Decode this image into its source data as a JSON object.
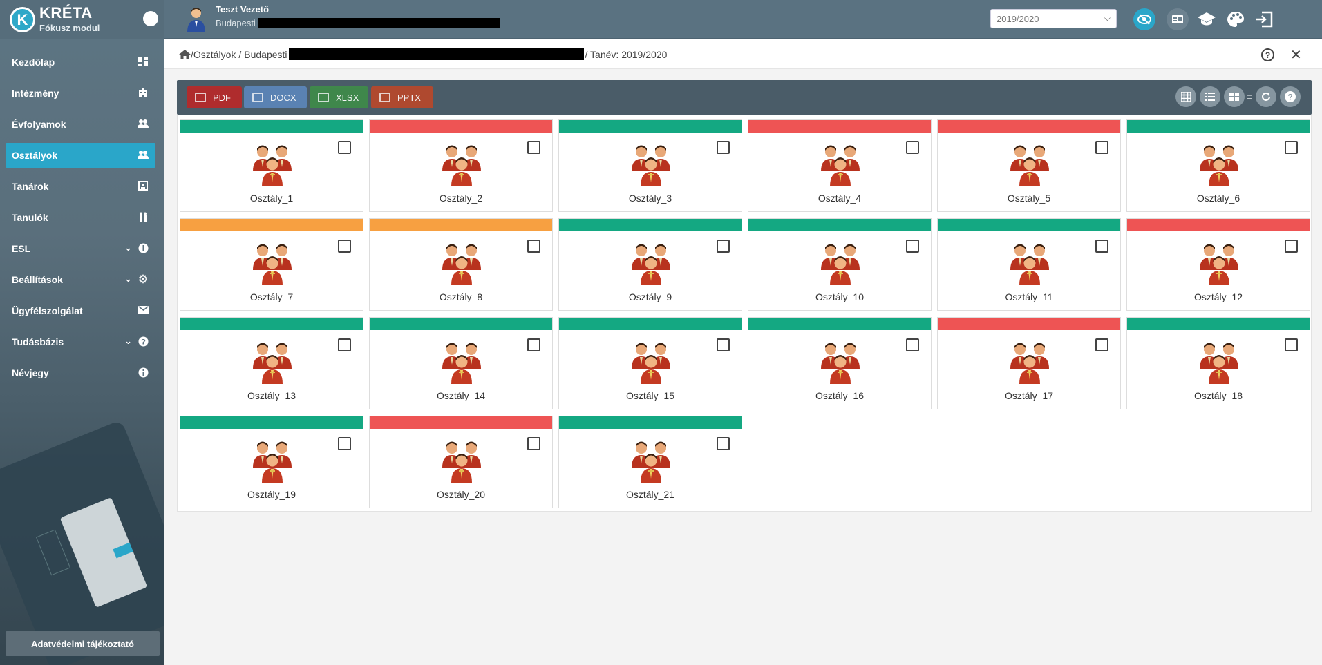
{
  "brand": {
    "logo_letter": "K",
    "title": "KRÉTA",
    "subtitle": "Fókusz modul"
  },
  "sidebar": {
    "items": [
      {
        "label": "Kezdőlap",
        "icon": "dashboard-icon",
        "active": false,
        "expandable": false
      },
      {
        "label": "Intézmény",
        "icon": "building-icon",
        "active": false,
        "expandable": false
      },
      {
        "label": "Évfolyamok",
        "icon": "people-icon",
        "active": false,
        "expandable": false
      },
      {
        "label": "Osztályok",
        "icon": "people-icon",
        "active": true,
        "expandable": false
      },
      {
        "label": "Tanárok",
        "icon": "contact-card-icon",
        "active": false,
        "expandable": false
      },
      {
        "label": "Tanulók",
        "icon": "students-icon",
        "active": false,
        "expandable": false
      },
      {
        "label": "ESL",
        "icon": "info-icon",
        "active": false,
        "expandable": true
      },
      {
        "label": "Beállítások",
        "icon": "gear-icon",
        "active": false,
        "expandable": true
      },
      {
        "label": "Ügyfélszolgálat",
        "icon": "mail-icon",
        "active": false,
        "expandable": false
      },
      {
        "label": "Tudásbázis",
        "icon": "help-icon",
        "active": false,
        "expandable": true
      },
      {
        "label": "Névjegy",
        "icon": "info-icon",
        "active": false,
        "expandable": false
      }
    ],
    "privacy_label": "Adatvédelmi tájékoztató"
  },
  "header": {
    "user_name": "Teszt Vezető",
    "institution": "Budapesti",
    "year_select": {
      "selected": "2019/2020"
    },
    "actions": [
      "visibility-off-icon",
      "id-card-icon",
      "graduation-cap-icon",
      "palette-icon",
      "logout-icon"
    ]
  },
  "breadcrumb": {
    "segment1": "/Osztályok",
    "sep1": "/",
    "segment2": "Budapesti",
    "tail": "/ Tanév: 2019/2020"
  },
  "toolbar": {
    "exports": [
      {
        "label": "PDF",
        "color": "#b52a2a"
      },
      {
        "label": "DOCX",
        "color": "#5b85b8"
      },
      {
        "label": "XLSX",
        "color": "#3f8a4a"
      },
      {
        "label": "PPTX",
        "color": "#b5482c"
      }
    ],
    "view_buttons": [
      "grid-view-icon",
      "list-view-icon",
      "card-view-icon",
      "refresh-icon",
      "help-icon"
    ]
  },
  "colors": {
    "green": "#14a882",
    "red": "#ee5454",
    "orange": "#f7a041",
    "accent": "#2aa6c9"
  },
  "classes": [
    {
      "name": "Osztály_1",
      "status": "green"
    },
    {
      "name": "Osztály_2",
      "status": "red"
    },
    {
      "name": "Osztály_3",
      "status": "green"
    },
    {
      "name": "Osztály_4",
      "status": "red"
    },
    {
      "name": "Osztály_5",
      "status": "red"
    },
    {
      "name": "Osztály_6",
      "status": "green"
    },
    {
      "name": "Osztály_7",
      "status": "orange"
    },
    {
      "name": "Osztály_8",
      "status": "orange"
    },
    {
      "name": "Osztály_9",
      "status": "green"
    },
    {
      "name": "Osztály_10",
      "status": "green"
    },
    {
      "name": "Osztály_11",
      "status": "green"
    },
    {
      "name": "Osztály_12",
      "status": "red"
    },
    {
      "name": "Osztály_13",
      "status": "green"
    },
    {
      "name": "Osztály_14",
      "status": "green"
    },
    {
      "name": "Osztály_15",
      "status": "green"
    },
    {
      "name": "Osztály_16",
      "status": "green"
    },
    {
      "name": "Osztály_17",
      "status": "red"
    },
    {
      "name": "Osztály_18",
      "status": "green"
    },
    {
      "name": "Osztály_19",
      "status": "green"
    },
    {
      "name": "Osztály_20",
      "status": "red"
    },
    {
      "name": "Osztály_21",
      "status": "green"
    }
  ]
}
